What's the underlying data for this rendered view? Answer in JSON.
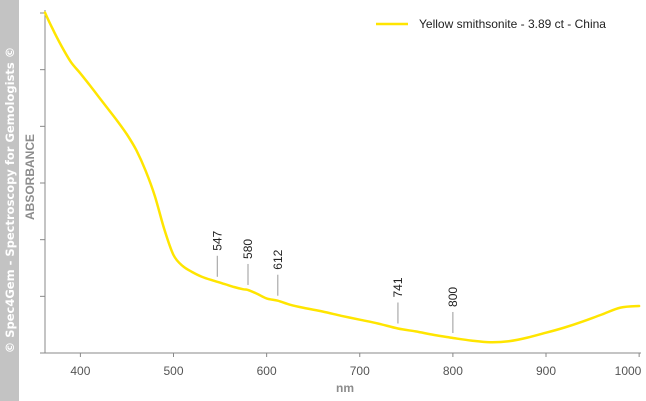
{
  "watermark": "© Spec4Gem - Spectroscopy for Gemologists ©",
  "chart_data": {
    "type": "line",
    "title": "",
    "xlabel": "nm",
    "ylabel": "ABSORBANCE",
    "xlim": [
      362,
      1002
    ],
    "x_ticks": [
      400,
      500,
      600,
      700,
      800,
      900,
      1000
    ],
    "x_tick_labels": [
      "400",
      "500",
      "600",
      "700",
      "800",
      "900",
      "1000"
    ],
    "legend_position": "top-right",
    "grid": false,
    "series": [
      {
        "name": "Yellow smithsonite - 3.89 ct - China",
        "color": "#ffe500",
        "x": [
          362,
          370,
          380,
          390,
          400,
          410,
          420,
          430,
          440,
          450,
          460,
          470,
          480,
          490,
          500,
          510,
          520,
          530,
          540,
          547,
          555,
          565,
          575,
          580,
          590,
          600,
          612,
          625,
          640,
          660,
          680,
          700,
          720,
          741,
          760,
          780,
          800,
          820,
          840,
          860,
          880,
          900,
          920,
          940,
          960,
          980,
          1000
        ],
        "y": [
          0.992,
          0.943,
          0.888,
          0.84,
          0.806,
          0.77,
          0.733,
          0.696,
          0.659,
          0.619,
          0.571,
          0.508,
          0.43,
          0.33,
          0.25,
          0.216,
          0.198,
          0.184,
          0.174,
          0.168,
          0.161,
          0.152,
          0.145,
          0.143,
          0.131,
          0.117,
          0.11,
          0.098,
          0.088,
          0.077,
          0.064,
          0.052,
          0.04,
          0.025,
          0.016,
          0.005,
          -0.004,
          -0.012,
          -0.017,
          -0.014,
          -0.003,
          0.012,
          0.028,
          0.047,
          0.068,
          0.089,
          0.094
        ]
      }
    ],
    "annotations": [
      {
        "label": "547",
        "x": 547
      },
      {
        "label": "580",
        "x": 580
      },
      {
        "label": "612",
        "x": 612
      },
      {
        "label": "741",
        "x": 741
      },
      {
        "label": "800",
        "x": 800
      }
    ]
  }
}
